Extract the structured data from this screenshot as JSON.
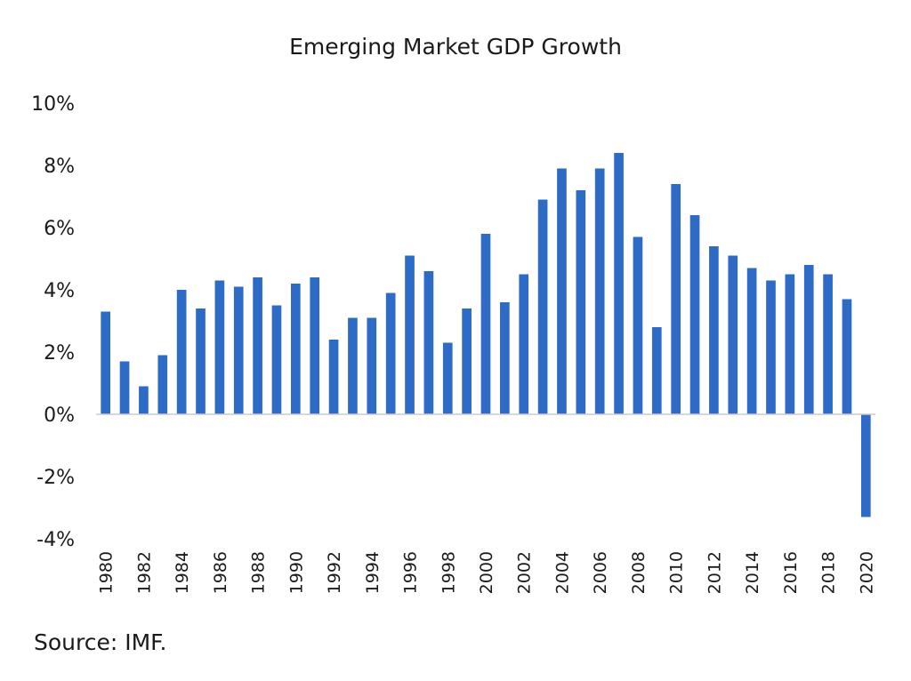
{
  "chart_data": {
    "type": "bar",
    "title": "Emerging Market GDP Growth",
    "xlabel": "",
    "ylabel": "",
    "categories": [
      "1980",
      "1981",
      "1982",
      "1983",
      "1984",
      "1985",
      "1986",
      "1987",
      "1988",
      "1989",
      "1990",
      "1991",
      "1992",
      "1993",
      "1994",
      "1995",
      "1996",
      "1997",
      "1998",
      "1999",
      "2000",
      "2001",
      "2002",
      "2003",
      "2004",
      "2005",
      "2006",
      "2007",
      "2008",
      "2009",
      "2010",
      "2011",
      "2012",
      "2013",
      "2014",
      "2015",
      "2016",
      "2017",
      "2018",
      "2019",
      "2020"
    ],
    "x_tick_labels": [
      "1980",
      "1982",
      "1984",
      "1986",
      "1988",
      "1990",
      "1992",
      "1994",
      "1996",
      "1998",
      "2000",
      "2002",
      "2004",
      "2006",
      "2008",
      "2010",
      "2012",
      "2014",
      "2016",
      "2018",
      "2020"
    ],
    "values": [
      3.3,
      1.7,
      0.9,
      1.9,
      4.0,
      3.4,
      4.3,
      4.1,
      4.4,
      3.5,
      4.2,
      4.4,
      2.4,
      3.1,
      3.1,
      3.9,
      5.1,
      4.6,
      2.3,
      3.4,
      5.8,
      3.6,
      4.5,
      6.9,
      7.9,
      7.2,
      7.9,
      8.4,
      5.7,
      2.8,
      7.4,
      6.4,
      5.4,
      5.1,
      4.7,
      4.3,
      4.5,
      4.8,
      4.5,
      3.7,
      -3.3
    ],
    "y_ticks": [
      -4,
      -2,
      0,
      2,
      4,
      6,
      8,
      10
    ],
    "y_tick_labels": [
      "-4%",
      "-2%",
      "0%",
      "2%",
      "4%",
      "6%",
      "8%",
      "10%"
    ],
    "ylim": [
      -4,
      10
    ],
    "grid": false,
    "bar_color": "#2e6bc6",
    "axis_color": "#cccccc"
  },
  "footer": {
    "source": "Source: IMF."
  }
}
